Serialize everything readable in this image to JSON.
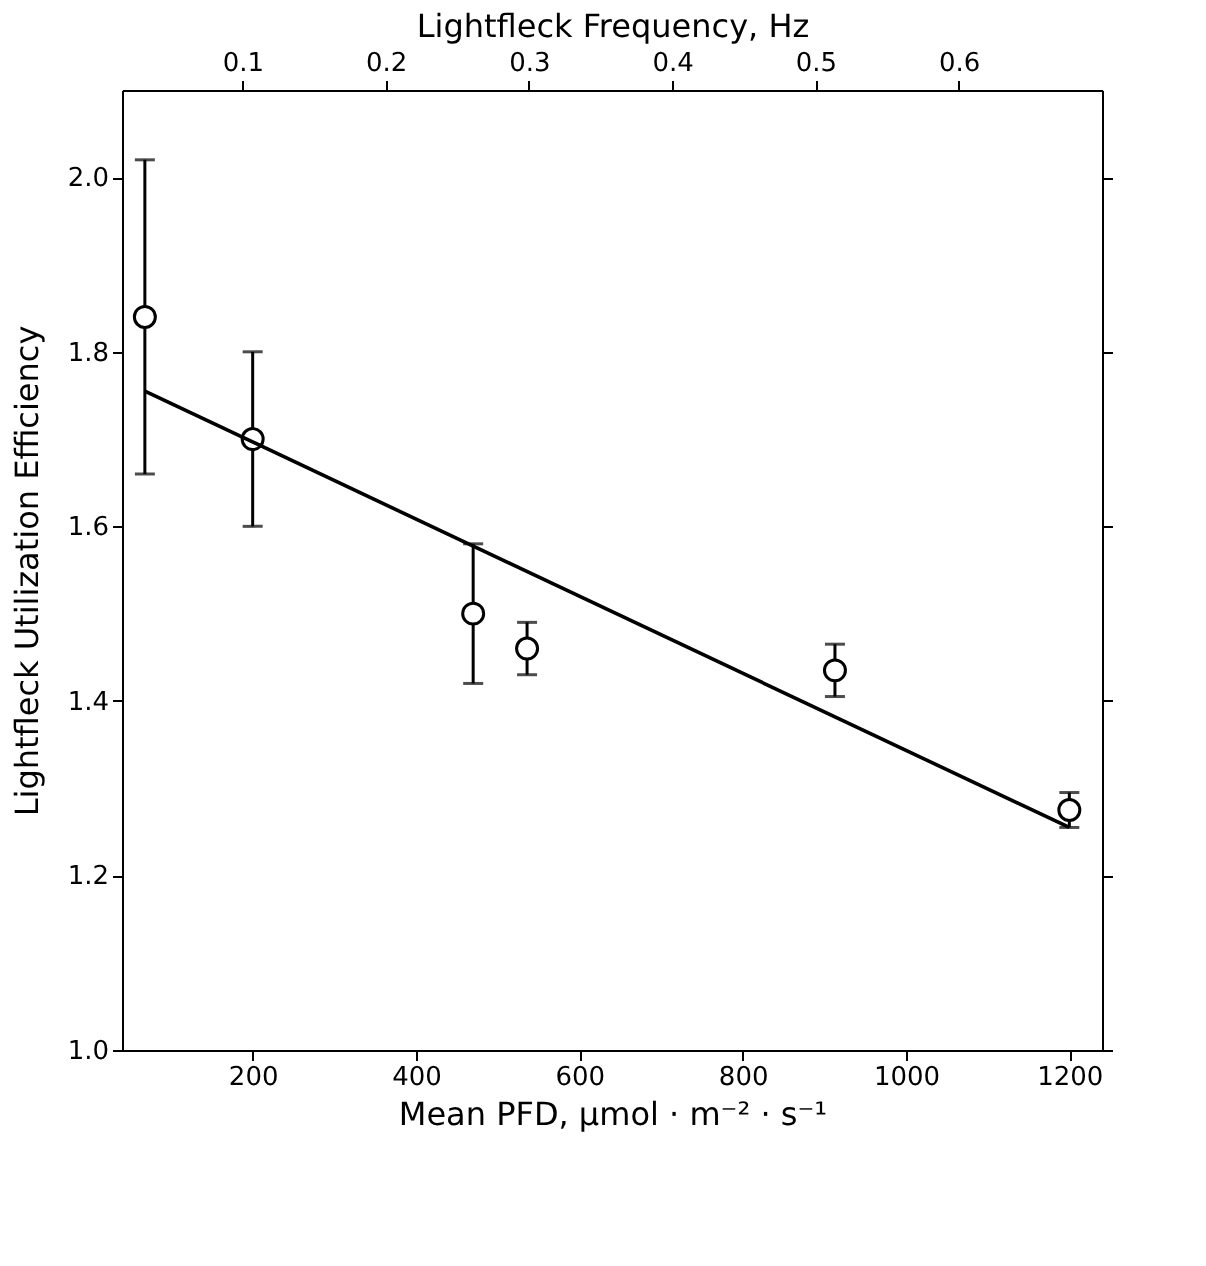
{
  "chart_data": {
    "type": "scatter",
    "xlabel": "Mean PFD, μmol · m⁻² · s⁻¹",
    "ylabel": "Lightfleck Utilization Efficiency",
    "x2label": "Lightfleck Frequency, Hz",
    "xlim": [
      40,
      1240
    ],
    "xticks": [
      200,
      400,
      600,
      800,
      1000,
      1200
    ],
    "ylim": [
      1.0,
      2.1
    ],
    "yticks": [
      {
        "value": 1.0,
        "label": "1.0"
      },
      {
        "value": 1.2,
        "label": "1.2"
      },
      {
        "value": 1.4,
        "label": "1.4"
      },
      {
        "value": 1.6,
        "label": "1.6"
      },
      {
        "value": 1.8,
        "label": "1.8"
      },
      {
        "value": 2.0,
        "label": "2.0"
      }
    ],
    "x2lim": [
      0.016,
      0.7
    ],
    "x2ticks": [
      0.1,
      0.2,
      0.3,
      0.4,
      0.5,
      0.6
    ],
    "grid": false,
    "legend": false,
    "series": [
      {
        "color": "#000000",
        "marker": "circle",
        "x": [
          68,
          200,
          470,
          536,
          913,
          1200
        ],
        "values": [
          1.84,
          1.7,
          1.5,
          1.46,
          1.435,
          1.275
        ],
        "errors": [
          [
            1.66,
            2.02
          ],
          [
            1.6,
            1.8
          ],
          [
            1.42,
            1.58
          ],
          [
            1.43,
            1.49
          ],
          [
            1.405,
            1.465
          ],
          [
            1.255,
            1.295
          ]
        ]
      },
      {
        "type": "line",
        "color": "#000000",
        "marker": "none",
        "line_style": "solid",
        "x": [
          68,
          1200
        ],
        "values": [
          1.755,
          1.255
        ]
      }
    ]
  }
}
